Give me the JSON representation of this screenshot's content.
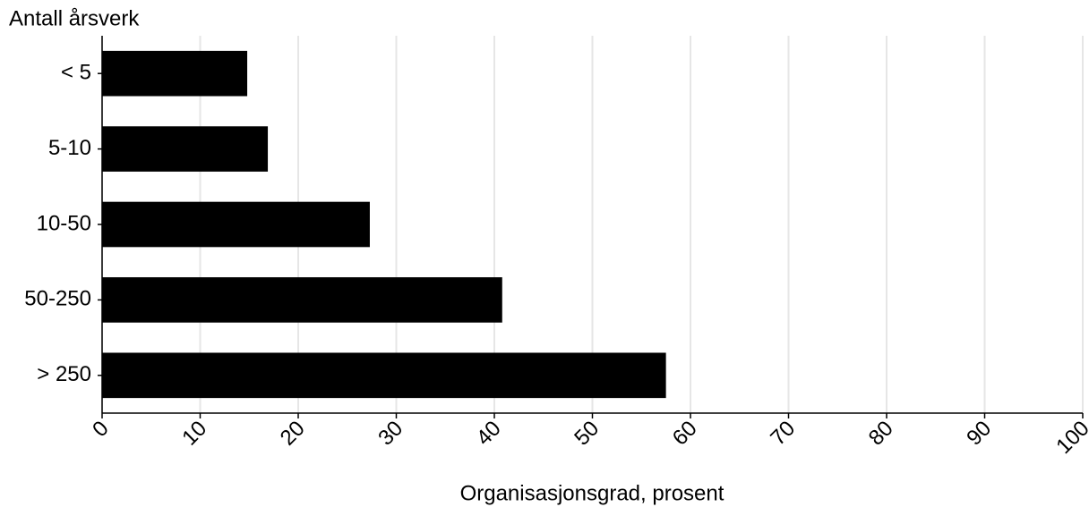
{
  "chart_data": {
    "type": "bar",
    "y_axis_title": "Antall årsverk",
    "x_axis_title": "Organisasjonsgrad, prosent",
    "categories": [
      "< 5",
      "5-10",
      "10-50",
      "50-250",
      "> 250"
    ],
    "values": [
      14.8,
      16.9,
      27.3,
      40.8,
      57.5
    ],
    "color": "#000000",
    "xlim": [
      0,
      100
    ],
    "xticks": [
      0,
      10,
      20,
      30,
      40,
      50,
      60,
      70,
      80,
      90,
      100
    ],
    "grid": true
  }
}
